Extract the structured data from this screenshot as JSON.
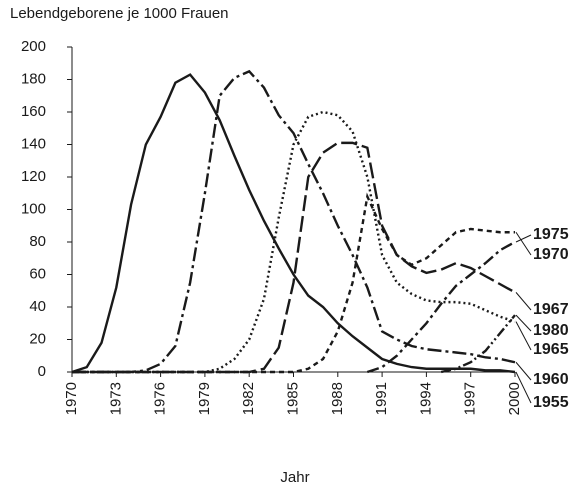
{
  "chart_data": {
    "type": "line",
    "title": "Lebendgeborene je 1000 Frauen",
    "xlabel": "Jahr",
    "x": [
      1970,
      1971,
      1972,
      1973,
      1974,
      1975,
      1976,
      1977,
      1978,
      1979,
      1980,
      1981,
      1982,
      1983,
      1984,
      1985,
      1986,
      1987,
      1988,
      1989,
      1990,
      1991,
      1992,
      1993,
      1994,
      1995,
      1996,
      1997,
      1998,
      1999,
      2000
    ],
    "xlim": [
      1970,
      2000
    ],
    "xticks": [
      1970,
      1973,
      1976,
      1979,
      1982,
      1985,
      1988,
      1991,
      1994,
      1997,
      2000
    ],
    "ylim": [
      0,
      200
    ],
    "yticks": [
      0,
      20,
      40,
      60,
      80,
      100,
      120,
      140,
      160,
      180,
      200
    ],
    "series": [
      {
        "name": "1975",
        "color": "#1a1a1a",
        "values": [
          null,
          null,
          null,
          null,
          null,
          null,
          null,
          null,
          null,
          null,
          null,
          null,
          null,
          null,
          null,
          null,
          null,
          null,
          null,
          null,
          0,
          3,
          10,
          20,
          30,
          42,
          53,
          60,
          67,
          75,
          80
        ]
      },
      {
        "name": "1970",
        "color": "#1a1a1a",
        "values": [
          0,
          0,
          0,
          0,
          0,
          0,
          0,
          0,
          0,
          0,
          0,
          0,
          0,
          0,
          0,
          0,
          2,
          8,
          25,
          55,
          108,
          88,
          72,
          66,
          70,
          78,
          86,
          88,
          87,
          86,
          86
        ]
      },
      {
        "name": "1967",
        "color": "#1a1a1a",
        "values": [
          0,
          0,
          0,
          0,
          0,
          0,
          0,
          0,
          0,
          0,
          0,
          0,
          0,
          2,
          15,
          55,
          120,
          135,
          141,
          141,
          138,
          90,
          72,
          65,
          61,
          63,
          67,
          64,
          59,
          54,
          49
        ]
      },
      {
        "name": "1980",
        "color": "#1a1a1a",
        "values": [
          null,
          null,
          null,
          null,
          null,
          null,
          null,
          null,
          null,
          null,
          null,
          null,
          null,
          null,
          null,
          null,
          null,
          null,
          null,
          null,
          null,
          null,
          null,
          null,
          null,
          0,
          2,
          6,
          13,
          24,
          35
        ]
      },
      {
        "name": "1965",
        "color": "#1a1a1a",
        "values": [
          0,
          0,
          0,
          0,
          0,
          0,
          0,
          0,
          0,
          0,
          2,
          8,
          20,
          45,
          95,
          140,
          157,
          160,
          158,
          148,
          120,
          72,
          55,
          48,
          44,
          43,
          43,
          42,
          38,
          34,
          31
        ]
      },
      {
        "name": "1960",
        "color": "#1a1a1a",
        "values": [
          0,
          0,
          0,
          0,
          0,
          1,
          5,
          16,
          55,
          110,
          170,
          181,
          185,
          175,
          158,
          147,
          128,
          110,
          90,
          72,
          52,
          25,
          20,
          16,
          14,
          13,
          12,
          11,
          9,
          8,
          6
        ]
      },
      {
        "name": "1955",
        "color": "#1a1a1a",
        "values": [
          0,
          3,
          18,
          52,
          103,
          140,
          157,
          178,
          183,
          172,
          155,
          133,
          112,
          93,
          76,
          60,
          47,
          40,
          30,
          22,
          15,
          8,
          5,
          3,
          2,
          2,
          2,
          2,
          1,
          1,
          0
        ]
      }
    ]
  }
}
